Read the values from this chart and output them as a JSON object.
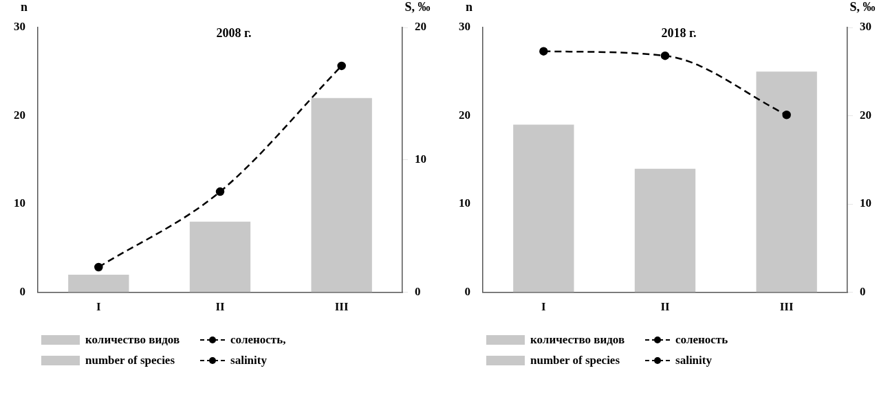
{
  "chart_data": [
    {
      "type": "bar",
      "title": "2008 г.",
      "ylabel": "n",
      "y2label": "S, ‰",
      "categories": [
        "I",
        "II",
        "III"
      ],
      "series": [
        {
          "name": "количество видов\nnumber of species",
          "color": "#c8c8c8",
          "values": [
            2,
            8,
            22
          ]
        },
        {
          "type": "line",
          "name": "соленость,\nsalinity",
          "color": "#000000",
          "axis": "y2",
          "marker": "circle",
          "line_style": "dashed",
          "values": [
            1.9,
            7.6,
            17.1
          ]
        }
      ],
      "ylim": [
        0,
        30
      ],
      "yticks": [
        0,
        10,
        20,
        30
      ],
      "y2lim": [
        0,
        20
      ],
      "y2ticks": [
        0,
        10,
        20
      ],
      "grid": false,
      "legend": "bottom"
    },
    {
      "type": "bar",
      "title": "2018 г.",
      "ylabel": "n",
      "y2label": "S, ‰",
      "categories": [
        "I",
        "II",
        "III"
      ],
      "series": [
        {
          "name": "количество видов\nnumber of species",
          "color": "#c8c8c8",
          "values": [
            19,
            14,
            25
          ]
        },
        {
          "type": "line",
          "name": "соленость\nsalinity",
          "color": "#000000",
          "axis": "y2",
          "marker": "circle",
          "line_style": "dashed",
          "values": [
            27.3,
            26.8,
            20.1
          ]
        }
      ],
      "ylim": [
        0,
        30
      ],
      "yticks": [
        0,
        10,
        20,
        30
      ],
      "y2lim": [
        0,
        30
      ],
      "y2ticks": [
        0,
        10,
        20,
        30
      ],
      "grid": false,
      "legend": "bottom"
    }
  ]
}
